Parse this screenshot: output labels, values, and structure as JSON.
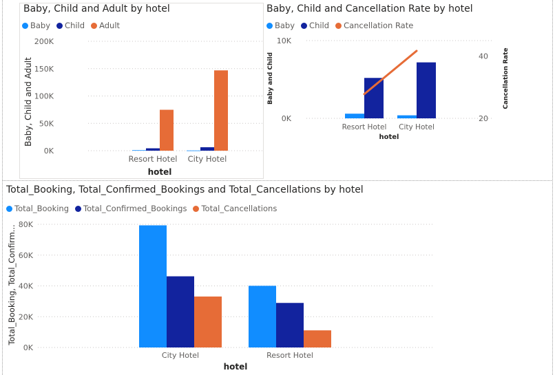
{
  "colors": {
    "baby": "#118dff",
    "child": "#12239e",
    "adult": "#e66c37",
    "grid": "#c8c6c4",
    "axis_text": "#605e5c",
    "title_text": "#252423"
  },
  "chart_data": [
    {
      "type": "bar",
      "title": "Baby, Child and Adult by hotel",
      "legend": "top-left",
      "categories": [
        "Resort Hotel",
        "City Hotel"
      ],
      "xlabel": "hotel",
      "ylabel": "Baby, Child and Adult",
      "ylim": [
        0,
        200000
      ],
      "yticks": [
        0,
        50000,
        100000,
        150000,
        200000
      ],
      "ytick_labels": [
        "0K",
        "50K",
        "100K",
        "150K",
        "200K"
      ],
      "grid": true,
      "series": [
        {
          "name": "Baby",
          "values": [
            949,
            392
          ]
        },
        {
          "name": "Child",
          "values": [
            4380,
            6340
          ]
        },
        {
          "name": "Adult",
          "values": [
            74800,
            146838
          ]
        }
      ]
    },
    {
      "type": "bar",
      "title": "Baby, Child and Cancellation Rate by hotel",
      "legend": "top-left",
      "categories": [
        "Resort Hotel",
        "City Hotel"
      ],
      "xlabel": "hotel",
      "ylabel": "Baby and Child",
      "y2label": "Cancellation Rate",
      "ylim": [
        0,
        10000
      ],
      "yticks": [
        0,
        10000
      ],
      "ytick_labels": [
        "0K",
        "10K"
      ],
      "y2lim": [
        20,
        45
      ],
      "y2ticks": [
        20,
        40
      ],
      "y2tick_labels": [
        "20",
        "40"
      ],
      "grid": true,
      "series": [
        {
          "name": "Baby",
          "values": [
            600,
            390
          ]
        },
        {
          "name": "Child",
          "values": [
            5200,
            7200
          ]
        },
        {
          "name": "Cancellation Rate",
          "type": "line",
          "values": [
            27.8,
            41.7
          ]
        }
      ]
    },
    {
      "type": "bar",
      "title": "Total_Booking, Total_Confirmed_Bookings and Total_Cancellations by hotel",
      "legend": "top-left",
      "categories": [
        "City Hotel",
        "Resort Hotel"
      ],
      "xlabel": "hotel",
      "ylabel": "Total_Booking, Total_Confirm...",
      "ylim": [
        0,
        80000
      ],
      "yticks": [
        0,
        20000,
        40000,
        60000,
        80000
      ],
      "ytick_labels": [
        "0K",
        "20K",
        "40K",
        "60K",
        "80K"
      ],
      "grid": true,
      "series": [
        {
          "name": "Total_Booking",
          "values": [
            79330,
            40060
          ]
        },
        {
          "name": "Total_Confirmed_Bookings",
          "values": [
            46228,
            28938
          ]
        },
        {
          "name": "Total_Cancellations",
          "values": [
            33102,
            11122
          ]
        }
      ]
    }
  ]
}
